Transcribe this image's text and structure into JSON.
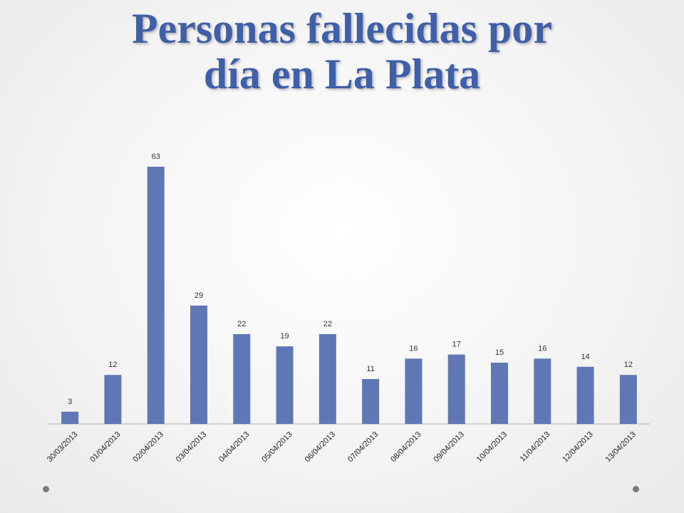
{
  "slide": {
    "title_line1": "Personas fallecidas por",
    "title_line2": "día en La Plata"
  },
  "colors": {
    "title": "#3f5fa8",
    "bar": "#5f77b5",
    "axis": "#b0b0b0"
  },
  "chart_data": {
    "type": "bar",
    "title": "",
    "xlabel": "",
    "ylabel": "",
    "categories": [
      "30/03/2013",
      "01/04/2013",
      "02/04/2013",
      "03/04/2013",
      "04/04/2013",
      "05/04/2013",
      "06/04/2013",
      "07/04/2013",
      "08/04/2013",
      "09/04/2013",
      "10/04/2013",
      "11/04/2013",
      "12/04/2013",
      "13/04/2013"
    ],
    "values": [
      3,
      12,
      63,
      29,
      22,
      19,
      22,
      11,
      16,
      17,
      15,
      16,
      14,
      12
    ],
    "ylim": [
      0,
      63
    ],
    "data_labels": true,
    "grid": false,
    "legend": false
  }
}
